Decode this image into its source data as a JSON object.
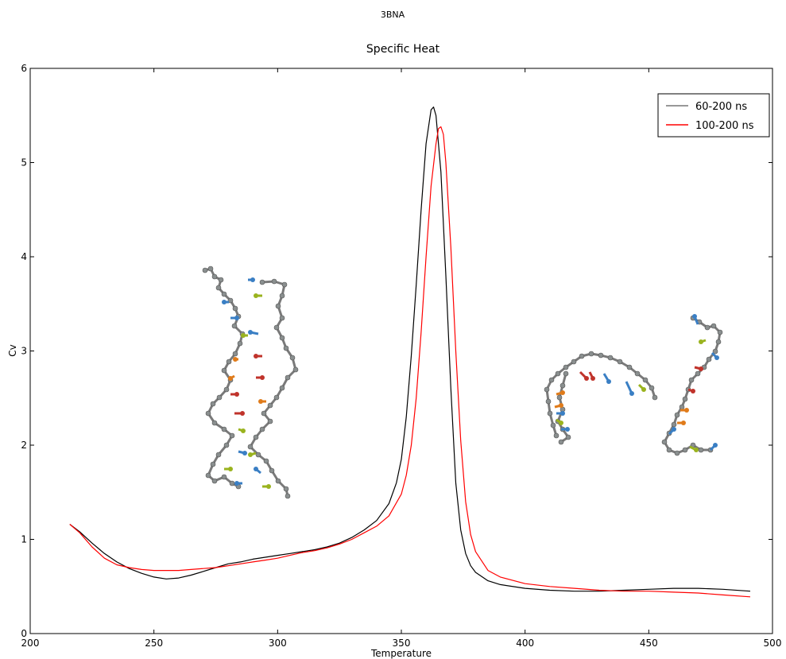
{
  "figure": {
    "suptitle": "3BNA"
  },
  "chart_data": {
    "type": "line",
    "title": "Specific Heat",
    "xlabel": "Temperature",
    "ylabel": "Cv",
    "xlim": [
      200,
      500
    ],
    "ylim": [
      0,
      6
    ],
    "xticks": [
      200,
      250,
      300,
      350,
      400,
      450,
      500
    ],
    "yticks": [
      0,
      1,
      2,
      3,
      4,
      5,
      6
    ],
    "grid": false,
    "legend_position": "top-right",
    "series": [
      {
        "name": "60-200 ns",
        "color": "#000000",
        "points": [
          [
            216,
            1.16
          ],
          [
            220,
            1.08
          ],
          [
            225,
            0.96
          ],
          [
            230,
            0.85
          ],
          [
            235,
            0.76
          ],
          [
            240,
            0.69
          ],
          [
            245,
            0.64
          ],
          [
            250,
            0.6
          ],
          [
            255,
            0.58
          ],
          [
            260,
            0.59
          ],
          [
            265,
            0.62
          ],
          [
            270,
            0.66
          ],
          [
            275,
            0.7
          ],
          [
            280,
            0.74
          ],
          [
            285,
            0.76
          ],
          [
            290,
            0.79
          ],
          [
            295,
            0.81
          ],
          [
            300,
            0.83
          ],
          [
            305,
            0.85
          ],
          [
            310,
            0.87
          ],
          [
            315,
            0.89
          ],
          [
            320,
            0.92
          ],
          [
            325,
            0.96
          ],
          [
            330,
            1.02
          ],
          [
            335,
            1.1
          ],
          [
            340,
            1.2
          ],
          [
            345,
            1.38
          ],
          [
            348,
            1.6
          ],
          [
            350,
            1.85
          ],
          [
            352,
            2.3
          ],
          [
            354,
            2.95
          ],
          [
            356,
            3.7
          ],
          [
            358,
            4.5
          ],
          [
            360,
            5.2
          ],
          [
            362,
            5.56
          ],
          [
            363,
            5.59
          ],
          [
            364,
            5.5
          ],
          [
            366,
            4.9
          ],
          [
            368,
            3.8
          ],
          [
            370,
            2.6
          ],
          [
            372,
            1.6
          ],
          [
            374,
            1.1
          ],
          [
            376,
            0.85
          ],
          [
            378,
            0.72
          ],
          [
            380,
            0.65
          ],
          [
            385,
            0.56
          ],
          [
            390,
            0.52
          ],
          [
            400,
            0.48
          ],
          [
            410,
            0.46
          ],
          [
            420,
            0.45
          ],
          [
            430,
            0.45
          ],
          [
            440,
            0.46
          ],
          [
            450,
            0.47
          ],
          [
            460,
            0.48
          ],
          [
            470,
            0.48
          ],
          [
            480,
            0.47
          ],
          [
            491,
            0.45
          ]
        ]
      },
      {
        "name": "100-200 ns",
        "color": "#ff0000",
        "points": [
          [
            216,
            1.16
          ],
          [
            220,
            1.07
          ],
          [
            225,
            0.92
          ],
          [
            230,
            0.8
          ],
          [
            235,
            0.73
          ],
          [
            240,
            0.7
          ],
          [
            245,
            0.68
          ],
          [
            250,
            0.67
          ],
          [
            255,
            0.67
          ],
          [
            260,
            0.67
          ],
          [
            265,
            0.68
          ],
          [
            270,
            0.69
          ],
          [
            275,
            0.7
          ],
          [
            280,
            0.72
          ],
          [
            285,
            0.74
          ],
          [
            290,
            0.76
          ],
          [
            295,
            0.78
          ],
          [
            300,
            0.8
          ],
          [
            305,
            0.83
          ],
          [
            310,
            0.86
          ],
          [
            315,
            0.88
          ],
          [
            320,
            0.91
          ],
          [
            325,
            0.95
          ],
          [
            330,
            1.0
          ],
          [
            335,
            1.07
          ],
          [
            340,
            1.14
          ],
          [
            345,
            1.25
          ],
          [
            350,
            1.48
          ],
          [
            352,
            1.68
          ],
          [
            354,
            2.0
          ],
          [
            356,
            2.5
          ],
          [
            358,
            3.2
          ],
          [
            360,
            4.0
          ],
          [
            362,
            4.75
          ],
          [
            364,
            5.2
          ],
          [
            365,
            5.36
          ],
          [
            366,
            5.38
          ],
          [
            367,
            5.3
          ],
          [
            368,
            5.0
          ],
          [
            370,
            4.1
          ],
          [
            372,
            3.0
          ],
          [
            374,
            2.05
          ],
          [
            376,
            1.4
          ],
          [
            378,
            1.05
          ],
          [
            380,
            0.87
          ],
          [
            385,
            0.67
          ],
          [
            390,
            0.6
          ],
          [
            400,
            0.53
          ],
          [
            410,
            0.5
          ],
          [
            420,
            0.48
          ],
          [
            430,
            0.46
          ],
          [
            440,
            0.45
          ],
          [
            450,
            0.45
          ],
          [
            460,
            0.44
          ],
          [
            470,
            0.43
          ],
          [
            480,
            0.41
          ],
          [
            491,
            0.39
          ]
        ]
      }
    ]
  },
  "insets": [
    {
      "name": "folded-dna-structure-image",
      "colors": {
        "backbone": "#7a7a7a",
        "blue": "#3a7fc4",
        "green": "#9ab31e",
        "red": "#c0332b",
        "orange": "#e07b1a"
      }
    },
    {
      "name": "unfolded-dna-structure-image",
      "colors": {
        "backbone": "#7a7a7a",
        "blue": "#3a7fc4",
        "green": "#9ab31e",
        "red": "#c0332b",
        "orange": "#e07b1a"
      }
    }
  ]
}
